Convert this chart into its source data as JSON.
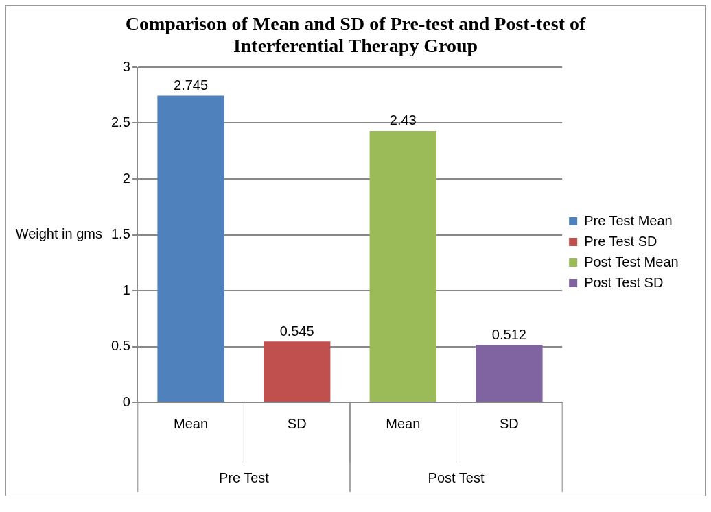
{
  "chart_data": {
    "type": "bar",
    "title": "Comparison of Mean and SD of Pre-test and Post-test of Interferential Therapy Group",
    "categories": [
      "Mean",
      "SD",
      "Mean",
      "SD"
    ],
    "series": [
      {
        "name": "Pre Test Mean",
        "color": "#4f81bd",
        "values": [
          2.745,
          null,
          null,
          null
        ]
      },
      {
        "name": "Pre Test SD",
        "color": "#c0504d",
        "values": [
          null,
          0.545,
          null,
          null
        ]
      },
      {
        "name": "Post Test Mean",
        "color": "#9bbb59",
        "values": [
          null,
          null,
          2.43,
          null
        ]
      },
      {
        "name": "Post Test SD",
        "color": "#8064a2",
        "values": [
          null,
          null,
          null,
          0.512
        ]
      }
    ],
    "ylabel": "Weight in gms",
    "annotations": [
      "Pre Test",
      "Post Test"
    ],
    "ylim": [
      0,
      3
    ],
    "yticks": [
      0,
      0.5,
      1,
      1.5,
      2,
      2.5,
      3
    ],
    "grid": "y",
    "legend": "right",
    "data_labels": true
  }
}
